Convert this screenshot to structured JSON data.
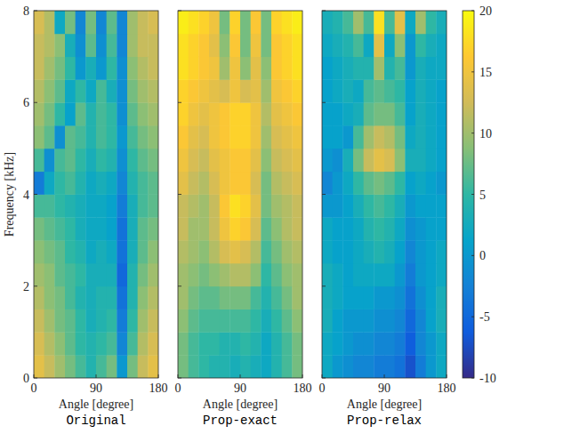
{
  "chart_data": {
    "type": "heatmap",
    "ylabel": "Frequency [kHz]",
    "xlabel": "Angle [degree]",
    "xlim": [
      0,
      180
    ],
    "xticks": [
      0,
      90,
      180
    ],
    "ylim": [
      0,
      8
    ],
    "yticks": [
      0,
      2,
      4,
      6,
      8
    ],
    "x_edges": [
      0,
      15,
      30,
      45,
      60,
      75,
      90,
      105,
      120,
      135,
      150,
      165,
      180
    ],
    "y_edges": [
      0,
      0.5,
      1,
      1.5,
      2,
      2.5,
      3,
      3.5,
      4,
      4.5,
      5,
      5.5,
      6,
      6.5,
      7,
      7.5,
      8
    ],
    "colorbar": {
      "range": [
        -10,
        20
      ],
      "ticks": [
        -10,
        -5,
        0,
        5,
        10,
        15,
        20
      ]
    },
    "panels": [
      {
        "name": "Original",
        "cells": [
          [
            14,
            12,
            10,
            8,
            6,
            4,
            6,
            8,
            0,
            8,
            12,
            14
          ],
          [
            13,
            11,
            9,
            7,
            5,
            4,
            5,
            6,
            -2,
            6,
            11,
            13
          ],
          [
            12,
            10,
            8,
            7,
            5,
            3,
            4,
            5,
            -3,
            5,
            10,
            12
          ],
          [
            11,
            9,
            8,
            6,
            4,
            3,
            4,
            4,
            -4,
            4,
            9,
            11
          ],
          [
            10,
            9,
            7,
            6,
            5,
            3,
            3,
            3,
            -5,
            4,
            8,
            10
          ],
          [
            9,
            8,
            7,
            5,
            4,
            2,
            3,
            2,
            -4,
            3,
            7,
            9
          ],
          [
            8,
            7,
            6,
            5,
            3,
            2,
            2,
            1,
            -4,
            3,
            7,
            8
          ],
          [
            6,
            6,
            5,
            4,
            3,
            2,
            2,
            1,
            -3,
            3,
            6,
            7
          ],
          [
            -3,
            2,
            5,
            6,
            4,
            2,
            3,
            2,
            -2,
            4,
            6,
            7
          ],
          [
            6,
            -1,
            6,
            7,
            5,
            3,
            5,
            4,
            -1,
            5,
            7,
            8
          ],
          [
            9,
            7,
            -1,
            7,
            6,
            4,
            6,
            5,
            0,
            6,
            8,
            9
          ],
          [
            10,
            8,
            5,
            1,
            7,
            4,
            6,
            5,
            -1,
            7,
            9,
            10
          ],
          [
            11,
            9,
            7,
            2,
            5,
            2,
            6,
            3,
            -1,
            8,
            10,
            11
          ],
          [
            12,
            10,
            8,
            5,
            0,
            3,
            0,
            5,
            -1,
            9,
            11,
            12
          ],
          [
            12,
            11,
            9,
            3,
            -1,
            7,
            -1,
            6,
            -2,
            10,
            12,
            12
          ],
          [
            13,
            11,
            2,
            8,
            -2,
            8,
            -2,
            7,
            -2,
            10,
            12,
            13
          ]
        ]
      },
      {
        "name": "Prop-exact",
        "cells": [
          [
            8,
            6,
            5,
            4,
            4,
            3,
            4,
            3,
            2,
            4,
            6,
            8
          ],
          [
            8,
            6,
            5,
            5,
            4,
            4,
            5,
            4,
            2,
            4,
            6,
            8
          ],
          [
            9,
            7,
            6,
            6,
            6,
            6,
            6,
            5,
            3,
            5,
            7,
            9
          ],
          [
            10,
            8,
            7,
            7,
            8,
            8,
            8,
            6,
            4,
            6,
            8,
            10
          ],
          [
            10,
            9,
            8,
            9,
            10,
            11,
            11,
            9,
            5,
            7,
            9,
            10
          ],
          [
            11,
            10,
            9,
            11,
            13,
            14,
            13,
            11,
            6,
            8,
            10,
            11
          ],
          [
            12,
            10,
            10,
            12,
            15,
            17,
            16,
            13,
            7,
            9,
            11,
            12
          ],
          [
            12,
            11,
            10,
            12,
            16,
            18,
            17,
            14,
            8,
            10,
            11,
            12
          ],
          [
            14,
            12,
            11,
            13,
            15,
            16,
            16,
            13,
            8,
            11,
            12,
            13
          ],
          [
            15,
            13,
            12,
            14,
            15,
            16,
            16,
            14,
            9,
            12,
            13,
            14
          ],
          [
            16,
            14,
            13,
            15,
            16,
            17,
            17,
            15,
            10,
            13,
            14,
            15
          ],
          [
            17,
            15,
            14,
            15,
            16,
            17,
            17,
            15,
            11,
            14,
            15,
            16
          ],
          [
            17,
            16,
            15,
            14,
            13,
            15,
            13,
            14,
            10,
            15,
            16,
            17
          ],
          [
            18,
            17,
            16,
            15,
            10,
            15,
            9,
            14,
            9,
            16,
            17,
            18
          ],
          [
            18,
            17,
            16,
            14,
            9,
            16,
            8,
            15,
            8,
            16,
            17,
            18
          ],
          [
            19,
            18,
            17,
            15,
            8,
            17,
            8,
            16,
            8,
            17,
            18,
            19
          ]
        ]
      },
      {
        "name": "Prop-relax",
        "cells": [
          [
            2,
            0,
            -1,
            -2,
            -2,
            -3,
            -3,
            -4,
            -7,
            -3,
            0,
            2
          ],
          [
            2,
            1,
            0,
            -1,
            -1,
            -2,
            -2,
            -3,
            -6,
            -2,
            0,
            2
          ],
          [
            3,
            1,
            0,
            0,
            0,
            -1,
            -1,
            -2,
            -5,
            -2,
            1,
            3
          ],
          [
            3,
            2,
            1,
            1,
            1,
            0,
            0,
            -1,
            -4,
            -1,
            1,
            3
          ],
          [
            3,
            2,
            1,
            2,
            2,
            2,
            2,
            0,
            -3,
            0,
            1,
            2
          ],
          [
            2,
            1,
            1,
            2,
            3,
            4,
            3,
            1,
            -2,
            0,
            1,
            2
          ],
          [
            2,
            1,
            1,
            2,
            4,
            5,
            4,
            2,
            -1,
            0,
            1,
            1
          ],
          [
            0,
            0,
            1,
            3,
            5,
            6,
            5,
            3,
            0,
            1,
            1,
            1
          ],
          [
            -2,
            0,
            2,
            5,
            7,
            8,
            7,
            5,
            1,
            2,
            1,
            0
          ],
          [
            0,
            -1,
            3,
            8,
            12,
            14,
            13,
            9,
            3,
            3,
            2,
            1
          ],
          [
            1,
            1,
            0,
            6,
            10,
            12,
            11,
            8,
            2,
            3,
            2,
            1
          ],
          [
            1,
            1,
            2,
            3,
            7,
            8,
            8,
            6,
            1,
            3,
            2,
            1
          ],
          [
            1,
            2,
            3,
            2,
            6,
            7,
            6,
            5,
            1,
            3,
            2,
            1
          ],
          [
            1,
            2,
            3,
            4,
            4,
            10,
            4,
            6,
            0,
            3,
            2,
            2
          ],
          [
            2,
            3,
            4,
            6,
            2,
            14,
            2,
            9,
            0,
            5,
            3,
            2
          ],
          [
            3,
            4,
            6,
            10,
            6,
            18,
            6,
            14,
            2,
            10,
            5,
            3
          ]
        ]
      }
    ]
  }
}
